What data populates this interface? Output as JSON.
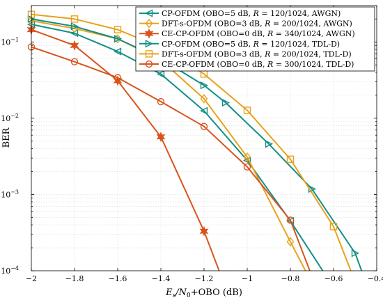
{
  "chart_data": {
    "type": "line",
    "title": "",
    "xlabel": "E_s/N_0+OBO (dB)",
    "xlabel_parts": {
      "main": "E",
      "sub1": "s",
      "slash": "/N",
      "sub2": "0",
      "tail": "+OBO (dB)"
    },
    "ylabel": "BER",
    "xlim": [
      -2,
      -0.4
    ],
    "ylim": [
      0.0001,
      0.3
    ],
    "y_scale": "log",
    "grid": true,
    "legend_position": "top-right",
    "x_ticks": [
      -2,
      -1.8,
      -1.6,
      -1.4,
      -1.2,
      -1,
      -0.8,
      -0.6,
      -0.4
    ],
    "x_tick_labels": [
      "−2",
      "−1.8",
      "−1.6",
      "−1.4",
      "−1.2",
      "−1",
      "−0.8",
      "−0.6",
      "−0.4"
    ],
    "y_ticks": [
      0.0001,
      0.001,
      0.01,
      0.1
    ],
    "y_tick_labels": [
      {
        "base": "10",
        "exp": "−4"
      },
      {
        "base": "10",
        "exp": "−3"
      },
      {
        "base": "10",
        "exp": "−2"
      },
      {
        "base": "10",
        "exp": "−1"
      }
    ],
    "series": [
      {
        "name": "CP-OFDM (OBO=5 dB, R = 120/1024, AWGN)",
        "legend": {
          "pre": "CP-OFDM (OBO=5 dB, ",
          "var": "R",
          "post": " = 120/1024, AWGN)"
        },
        "color": "#138f86",
        "marker": "triangle-left",
        "x": [
          -2,
          -1.8,
          -1.6,
          -1.4,
          -1.2,
          -1,
          -0.8,
          -0.65
        ],
        "y": [
          0.17,
          0.13,
          0.075,
          0.038,
          0.0125,
          0.0028,
          0.00045,
          0.0001
        ]
      },
      {
        "name": "DFT-s-OFDM (OBO=3 dB, R = 200/1024, AWGN)",
        "legend": {
          "pre": "DFT-s-OFDM (OBO=3 dB, ",
          "var": "R",
          "post": " = 200/1024, AWGN)"
        },
        "color": "#e8a21b",
        "marker": "diamond",
        "x": [
          -2,
          -1.8,
          -1.6,
          -1.4,
          -1.2,
          -1,
          -0.8,
          -0.73
        ],
        "y": [
          0.19,
          0.15,
          0.11,
          0.058,
          0.018,
          0.0031,
          0.00024,
          0.0001
        ]
      },
      {
        "name": "CE-CP-OFDM (OBO=0 dB, R = 340/1024, AWGN)",
        "legend": {
          "pre": "CE-CP-OFDM (OBO=0 dB, ",
          "var": "R",
          "post": " = 340/1024, AWGN)"
        },
        "color": "#d9541b",
        "marker": "hexagram",
        "x": [
          -2,
          -1.8,
          -1.6,
          -1.4,
          -1.2,
          -1.13
        ],
        "y": [
          0.145,
          0.09,
          0.031,
          0.0057,
          0.00033,
          0.0001
        ]
      },
      {
        "name": "CP-OFDM (OBO=5 dB, R = 120/1024, TDL-D)",
        "legend": {
          "pre": "CP-OFDM (OBO=5 dB, ",
          "var": "R",
          "post": " = 120/1024, TDL-D)"
        },
        "color": "#138f86",
        "marker": "triangle-right",
        "x": [
          -2,
          -1.8,
          -1.6,
          -1.4,
          -1.2,
          -1.1,
          -0.9,
          -0.7,
          -0.5,
          -0.47
        ],
        "y": [
          0.2,
          0.16,
          0.11,
          0.06,
          0.027,
          0.016,
          0.0046,
          0.00118,
          0.00017,
          0.0001
        ]
      },
      {
        "name": "DFT-s-OFDM (OBO=3 dB, R = 200/1024, TDL-D)",
        "legend": {
          "pre": "DFT-s-OFDM (OBO=3 dB, ",
          "var": "R",
          "post": " = 200/1024, TDL-D)"
        },
        "color": "#e8a21b",
        "marker": "square",
        "x": [
          -2,
          -1.8,
          -1.6,
          -1.4,
          -1.2,
          -1,
          -0.8,
          -0.6,
          -0.52
        ],
        "y": [
          0.23,
          0.2,
          0.145,
          0.085,
          0.038,
          0.0127,
          0.0029,
          0.00038,
          0.0001
        ]
      },
      {
        "name": "CE-CP-OFDM (OBO=0 dB, R = 300/1024, TDL-D)",
        "legend": {
          "pre": "CE-CP-OFDM (OBO=0 dB, ",
          "var": "R",
          "post": " = 300/1024, TDL-D)"
        },
        "color": "#d9541b",
        "marker": "circle",
        "x": [
          -2,
          -1.8,
          -1.6,
          -1.4,
          -1.2,
          -1,
          -0.8,
          -0.71
        ],
        "y": [
          0.086,
          0.055,
          0.034,
          0.0165,
          0.0078,
          0.0023,
          0.00046,
          0.0001
        ]
      }
    ]
  }
}
